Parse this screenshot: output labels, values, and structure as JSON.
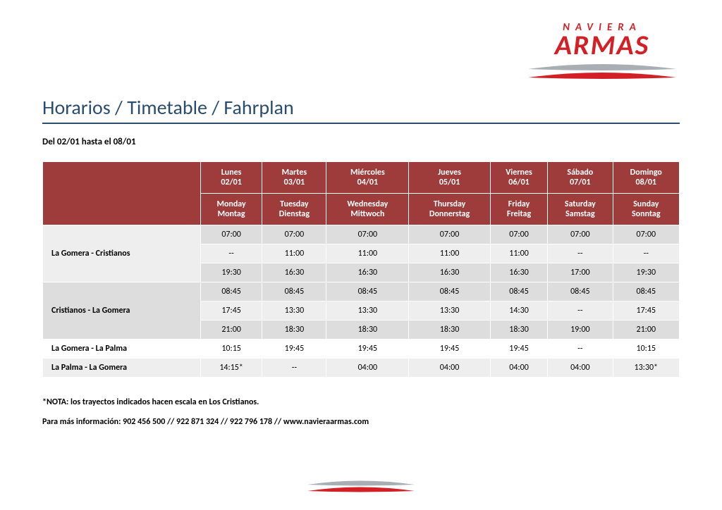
{
  "logo": {
    "line1": "NAVIERA",
    "line2": "ARMAS",
    "swoosh_color_top": "#a8aeb3",
    "swoosh_color_bottom": "#d32027"
  },
  "title": "Horarios / Timetable / Fahrplan",
  "date_range": "Del  02/01 hasta el 08/01",
  "colors": {
    "header_bg": "#9e3b3b",
    "title_color": "#2a4d6e",
    "row_dark": "#dddddd",
    "row_light": "#eeeeee",
    "row_white": "#ffffff"
  },
  "days": [
    {
      "es": "Lunes",
      "date": "02/01",
      "en": "Monday",
      "de": "Montag"
    },
    {
      "es": "Martes",
      "date": "03/01",
      "en": "Tuesday",
      "de": "Dienstag"
    },
    {
      "es": "Miércoles",
      "date": "04/01",
      "en": "Wednesday",
      "de": "Mittwoch"
    },
    {
      "es": "Jueves",
      "date": "05/01",
      "en": "Thursday",
      "de": "Donnerstag"
    },
    {
      "es": "Viernes",
      "date": "06/01",
      "en": "Friday",
      "de": "Freitag"
    },
    {
      "es": "Sábado",
      "date": "07/01",
      "en": "Saturday",
      "de": "Samstag"
    },
    {
      "es": "Domingo",
      "date": "08/01",
      "en": "Sunday",
      "de": "Sonntag"
    }
  ],
  "routes": [
    {
      "name": "La Gomera - Cristianos",
      "rows": [
        [
          "07:00",
          "07:00",
          "07:00",
          "07:00",
          "07:00",
          "07:00",
          "07:00"
        ],
        [
          "--",
          "11:00",
          "11:00",
          "11:00",
          "11:00",
          "--",
          "--"
        ],
        [
          "19:30",
          "16:30",
          "16:30",
          "16:30",
          "16:30",
          "17:00",
          "19:30"
        ]
      ]
    },
    {
      "name": "Cristianos - La Gomera",
      "rows": [
        [
          "08:45",
          "08:45",
          "08:45",
          "08:45",
          "08:45",
          "08:45",
          "08:45"
        ],
        [
          "17:45",
          "13:30",
          "13:30",
          "13:30",
          "14:30",
          "--",
          "17:45"
        ],
        [
          "21:00",
          "18:30",
          "18:30",
          "18:30",
          "18:30",
          "19:00",
          "21:00"
        ]
      ]
    },
    {
      "name": "La Gomera - La Palma",
      "rows": [
        [
          "10:15",
          "19:45",
          "19:45",
          "19:45",
          "19:45",
          "--",
          "10:15"
        ]
      ]
    },
    {
      "name": "La Palma - La Gomera",
      "rows": [
        [
          "14:15*",
          "--",
          "04:00",
          "04:00",
          "04:00",
          "04:00",
          "13:30*"
        ]
      ]
    }
  ],
  "note": "*NOTA: los trayectos indicados hacen escala en Los Cristianos.",
  "info": "Para más información: 902 456 500 // 922 871 324 // 922 796 178 // www.navieraarmas.com"
}
